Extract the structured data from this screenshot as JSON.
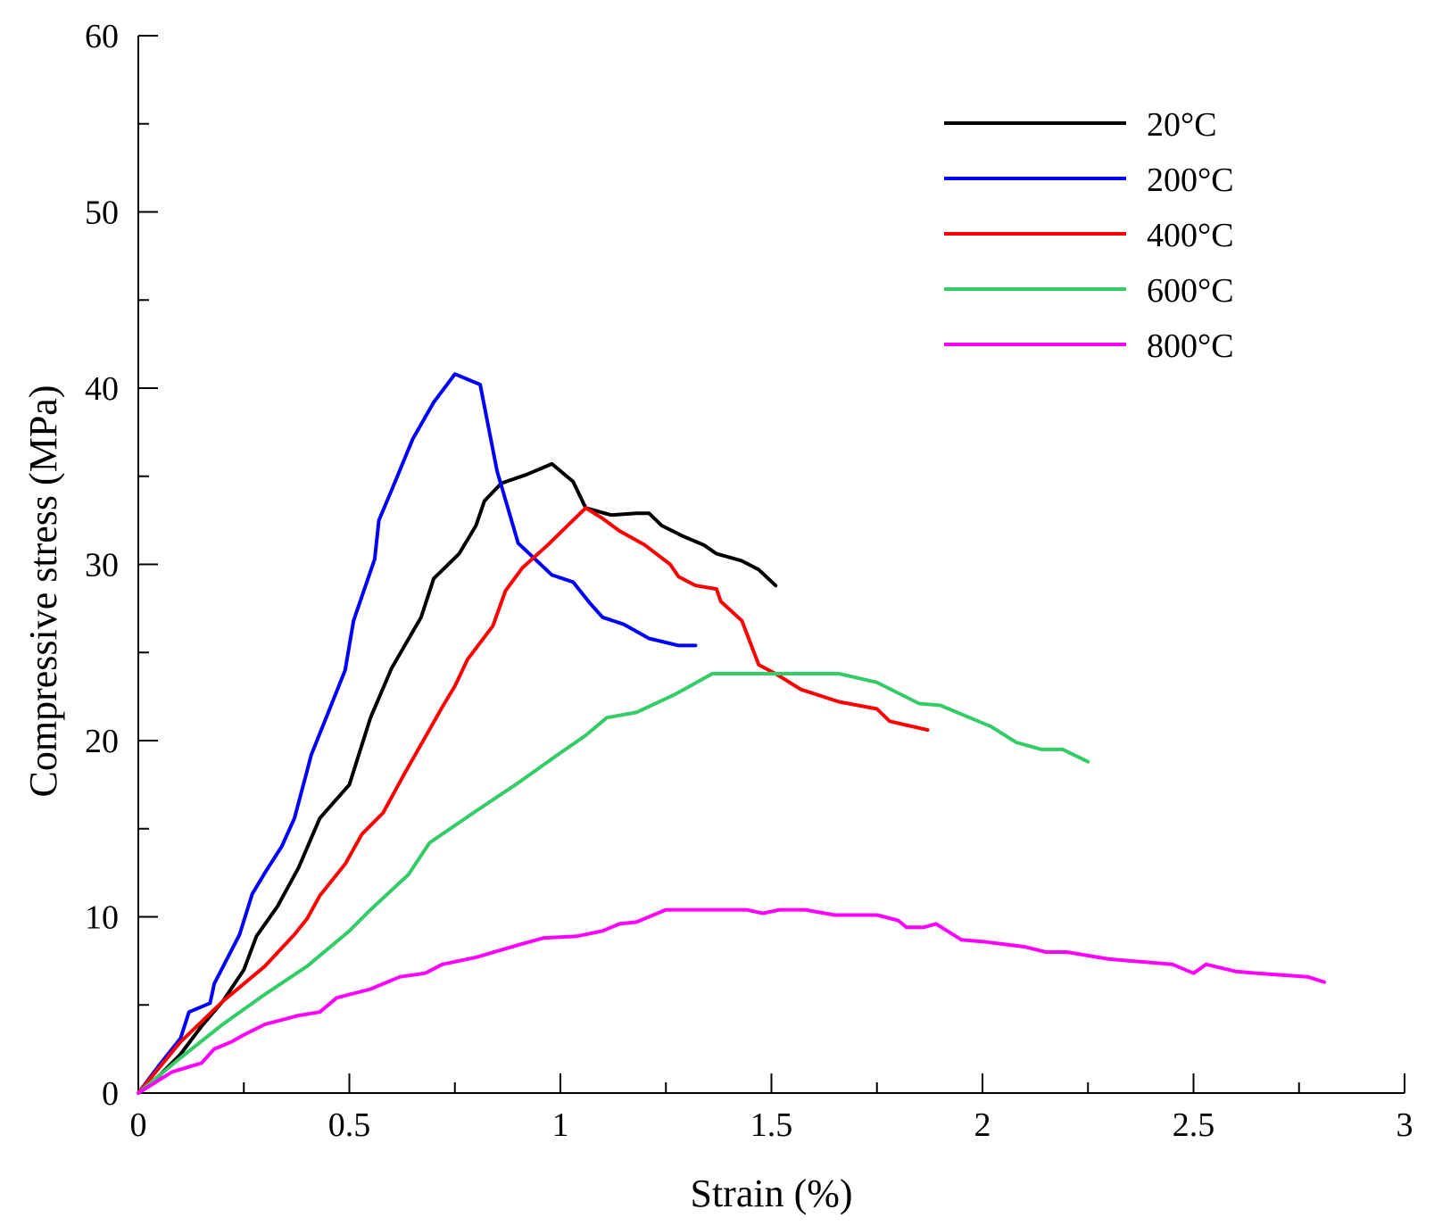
{
  "chart_data": {
    "type": "line",
    "title": "",
    "xlabel": "Strain (%)",
    "ylabel": "Compressive stress (MPa)",
    "xlim": [
      0,
      3
    ],
    "ylim": [
      0,
      60
    ],
    "x_ticks": [
      "0",
      "0.5",
      "1",
      "1.5",
      "2",
      "2.5",
      "3"
    ],
    "y_ticks": [
      "0",
      "10",
      "20",
      "30",
      "40",
      "50",
      "60"
    ],
    "grid": false,
    "legend_position": "top-right",
    "series": [
      {
        "name": "20°C",
        "color": "#000000",
        "points": [
          [
            0,
            0
          ],
          [
            0.05,
            1.0
          ],
          [
            0.1,
            2.2
          ],
          [
            0.15,
            3.8
          ],
          [
            0.2,
            5.2
          ],
          [
            0.25,
            7.0
          ],
          [
            0.28,
            8.9
          ],
          [
            0.33,
            10.6
          ],
          [
            0.38,
            12.8
          ],
          [
            0.43,
            15.6
          ],
          [
            0.5,
            17.5
          ],
          [
            0.55,
            21.3
          ],
          [
            0.6,
            24.1
          ],
          [
            0.67,
            27.0
          ],
          [
            0.7,
            29.2
          ],
          [
            0.76,
            30.6
          ],
          [
            0.8,
            32.2
          ],
          [
            0.82,
            33.6
          ],
          [
            0.86,
            34.6
          ],
          [
            0.92,
            35.1
          ],
          [
            0.98,
            35.7
          ],
          [
            1.03,
            34.7
          ],
          [
            1.06,
            33.2
          ],
          [
            1.12,
            32.8
          ],
          [
            1.18,
            32.9
          ],
          [
            1.21,
            32.9
          ],
          [
            1.24,
            32.2
          ],
          [
            1.29,
            31.6
          ],
          [
            1.34,
            31.1
          ],
          [
            1.37,
            30.6
          ],
          [
            1.43,
            30.2
          ],
          [
            1.47,
            29.7
          ],
          [
            1.51,
            28.8
          ]
        ]
      },
      {
        "name": "200°C",
        "color": "#0000ff",
        "points": [
          [
            0,
            0
          ],
          [
            0.05,
            1.6
          ],
          [
            0.1,
            3.1
          ],
          [
            0.12,
            4.6
          ],
          [
            0.17,
            5.1
          ],
          [
            0.18,
            6.2
          ],
          [
            0.24,
            9.0
          ],
          [
            0.27,
            11.3
          ],
          [
            0.3,
            12.5
          ],
          [
            0.34,
            14.0
          ],
          [
            0.37,
            15.6
          ],
          [
            0.4,
            18.3
          ],
          [
            0.41,
            19.2
          ],
          [
            0.45,
            21.6
          ],
          [
            0.49,
            24.0
          ],
          [
            0.51,
            26.8
          ],
          [
            0.56,
            30.3
          ],
          [
            0.57,
            32.5
          ],
          [
            0.6,
            34.2
          ],
          [
            0.65,
            37.1
          ],
          [
            0.7,
            39.2
          ],
          [
            0.75,
            40.8
          ],
          [
            0.81,
            40.2
          ],
          [
            0.85,
            35.3
          ],
          [
            0.9,
            31.2
          ],
          [
            0.98,
            29.4
          ],
          [
            1.03,
            29.0
          ],
          [
            1.07,
            27.8
          ],
          [
            1.1,
            27.0
          ],
          [
            1.15,
            26.6
          ],
          [
            1.21,
            25.8
          ],
          [
            1.28,
            25.4
          ],
          [
            1.32,
            25.4
          ]
        ]
      },
      {
        "name": "400°C",
        "color": "#ff0000",
        "points": [
          [
            0,
            0
          ],
          [
            0.1,
            2.9
          ],
          [
            0.2,
            5.2
          ],
          [
            0.3,
            7.2
          ],
          [
            0.37,
            9.0
          ],
          [
            0.4,
            9.9
          ],
          [
            0.43,
            11.2
          ],
          [
            0.49,
            13.0
          ],
          [
            0.53,
            14.7
          ],
          [
            0.58,
            15.9
          ],
          [
            0.63,
            18.1
          ],
          [
            0.68,
            20.2
          ],
          [
            0.72,
            21.9
          ],
          [
            0.75,
            23.1
          ],
          [
            0.78,
            24.6
          ],
          [
            0.84,
            26.5
          ],
          [
            0.87,
            28.5
          ],
          [
            0.91,
            29.8
          ],
          [
            0.97,
            31.1
          ],
          [
            1.0,
            31.8
          ],
          [
            1.06,
            33.2
          ],
          [
            1.1,
            32.6
          ],
          [
            1.14,
            31.9
          ],
          [
            1.2,
            31.1
          ],
          [
            1.26,
            30.0
          ],
          [
            1.28,
            29.3
          ],
          [
            1.32,
            28.8
          ],
          [
            1.37,
            28.6
          ],
          [
            1.38,
            27.9
          ],
          [
            1.43,
            26.8
          ],
          [
            1.47,
            24.3
          ],
          [
            1.51,
            23.8
          ],
          [
            1.57,
            22.9
          ],
          [
            1.66,
            22.2
          ],
          [
            1.75,
            21.8
          ],
          [
            1.78,
            21.1
          ],
          [
            1.87,
            20.6
          ]
        ]
      },
      {
        "name": "600°C",
        "color": "#33cc66",
        "points": [
          [
            0,
            0
          ],
          [
            0.1,
            2.0
          ],
          [
            0.2,
            3.9
          ],
          [
            0.3,
            5.6
          ],
          [
            0.4,
            7.2
          ],
          [
            0.5,
            9.2
          ],
          [
            0.55,
            10.4
          ],
          [
            0.64,
            12.4
          ],
          [
            0.69,
            14.2
          ],
          [
            0.8,
            16.0
          ],
          [
            0.9,
            17.6
          ],
          [
            1.0,
            19.3
          ],
          [
            1.06,
            20.3
          ],
          [
            1.11,
            21.3
          ],
          [
            1.18,
            21.6
          ],
          [
            1.27,
            22.6
          ],
          [
            1.36,
            23.8
          ],
          [
            1.66,
            23.8
          ],
          [
            1.75,
            23.3
          ],
          [
            1.85,
            22.1
          ],
          [
            1.9,
            22.0
          ],
          [
            2.02,
            20.8
          ],
          [
            2.08,
            19.9
          ],
          [
            2.14,
            19.5
          ],
          [
            2.19,
            19.5
          ],
          [
            2.25,
            18.8
          ]
        ]
      },
      {
        "name": "800°C",
        "color": "#ff00ff",
        "points": [
          [
            0,
            0
          ],
          [
            0.08,
            1.2
          ],
          [
            0.15,
            1.7
          ],
          [
            0.18,
            2.5
          ],
          [
            0.22,
            2.9
          ],
          [
            0.25,
            3.3
          ],
          [
            0.3,
            3.9
          ],
          [
            0.38,
            4.4
          ],
          [
            0.43,
            4.6
          ],
          [
            0.47,
            5.4
          ],
          [
            0.55,
            5.9
          ],
          [
            0.62,
            6.6
          ],
          [
            0.68,
            6.8
          ],
          [
            0.72,
            7.3
          ],
          [
            0.8,
            7.7
          ],
          [
            0.9,
            8.4
          ],
          [
            0.96,
            8.8
          ],
          [
            1.04,
            8.9
          ],
          [
            1.1,
            9.2
          ],
          [
            1.14,
            9.6
          ],
          [
            1.18,
            9.7
          ],
          [
            1.25,
            10.4
          ],
          [
            1.44,
            10.4
          ],
          [
            1.48,
            10.2
          ],
          [
            1.52,
            10.4
          ],
          [
            1.58,
            10.4
          ],
          [
            1.65,
            10.1
          ],
          [
            1.75,
            10.1
          ],
          [
            1.8,
            9.8
          ],
          [
            1.82,
            9.4
          ],
          [
            1.86,
            9.4
          ],
          [
            1.89,
            9.6
          ],
          [
            1.95,
            8.7
          ],
          [
            2.0,
            8.6
          ],
          [
            2.1,
            8.3
          ],
          [
            2.15,
            8.0
          ],
          [
            2.2,
            8.0
          ],
          [
            2.3,
            7.6
          ],
          [
            2.45,
            7.3
          ],
          [
            2.5,
            6.8
          ],
          [
            2.53,
            7.3
          ],
          [
            2.6,
            6.9
          ],
          [
            2.65,
            6.8
          ],
          [
            2.77,
            6.6
          ],
          [
            2.81,
            6.3
          ]
        ]
      }
    ]
  }
}
